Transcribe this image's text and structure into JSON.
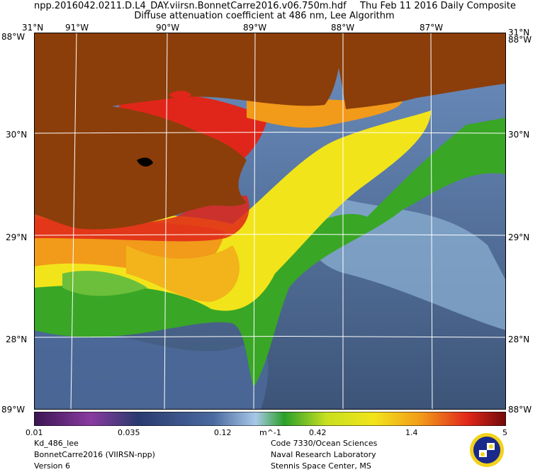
{
  "title": {
    "filename": "npp.2016042.0211.D.L4_DAY.viirsn.BonnetCarre2016.v06.750m.hdf",
    "date": "Thu Feb 11 2016 Daily Composite",
    "product": "Diffuse attenuation coefficient at 486 nm, Lee Algorithm"
  },
  "map": {
    "top_lat_label": "31°N",
    "bottom_lat_label": "30°N",
    "lon_labels": [
      "91°W",
      "90°W",
      "89°W",
      "88°W",
      "87°W"
    ],
    "lat_labels_left": [
      "30°N",
      "29°N",
      "28°N"
    ],
    "lat_labels_right": [
      "30°N",
      "29°N",
      "28°N"
    ],
    "corner_labels": {
      "top_left": "88°W",
      "top_right": "88°W",
      "bottom_left": "89°W",
      "bottom_right": "88°W"
    }
  },
  "colorbar": {
    "ticks": [
      "0.01",
      "0.035",
      "0.12",
      "m^-1",
      "0.42",
      "1.4",
      "5"
    ]
  },
  "footer": {
    "left": [
      "Kd_486_lee",
      "BonnetCarre2016 (VIIRSN-npp)",
      "Version 6"
    ],
    "right": [
      "Code 7330/Ocean Sciences",
      "Naval Research Laboratory",
      "Stennis Space Center, MS"
    ]
  },
  "colors": {
    "land": "#8b3e0a",
    "ocean_low": "#3d5a8a",
    "ocean_mid": "#8fb3d6",
    "green": "#39a626",
    "yellow": "#f2e41a",
    "orange": "#f29a1a",
    "red": "#e0261a"
  }
}
